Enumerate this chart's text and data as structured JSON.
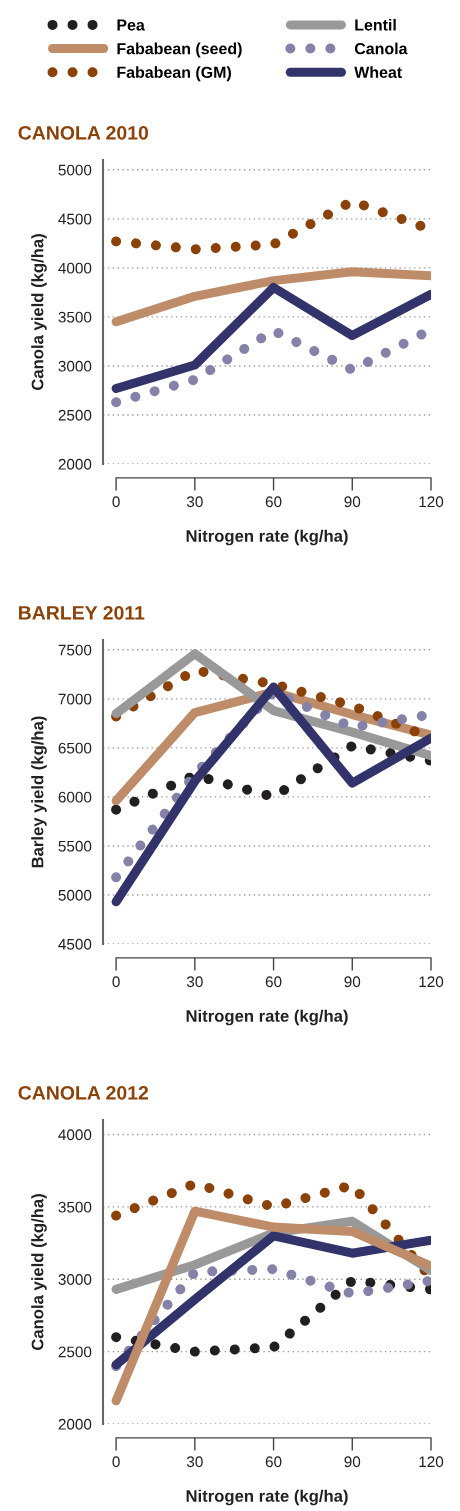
{
  "chart_data": [
    {
      "type": "line",
      "title": "CANOLA 2010",
      "xlabel": "Nitrogen rate (kg/ha)",
      "ylabel": "Canola yield (kg/ha)",
      "x": [
        0,
        30,
        60,
        90,
        120
      ],
      "xlim": [
        -5,
        120
      ],
      "xticks": [
        0,
        30,
        60,
        90,
        120
      ],
      "ylim": [
        2000,
        5100
      ],
      "yticks": [
        2000,
        2500,
        3000,
        3500,
        4000,
        4500,
        5000
      ],
      "grid": "y",
      "legend": "top",
      "series": [
        {
          "name": "Fababean (seed)",
          "color": "#be8c69",
          "line_style": "solid",
          "values": [
            3450,
            3710,
            3870,
            3960,
            3920
          ]
        },
        {
          "name": "Fababean (GM)",
          "color": "#8b4209",
          "line_style": "dotted",
          "values": [
            4270,
            4190,
            4240,
            4680,
            4390
          ]
        },
        {
          "name": "Canola",
          "color": "#8482a8",
          "line_style": "dotted",
          "values": [
            2630,
            2860,
            3360,
            2960,
            3370
          ]
        },
        {
          "name": "Wheat",
          "color": "#33336b",
          "line_style": "solid",
          "values": [
            2770,
            3010,
            3800,
            3310,
            3730
          ]
        }
      ]
    },
    {
      "type": "line",
      "title": "BARLEY 2011",
      "xlabel": "Nitrogen rate (kg/ha)",
      "ylabel": "Barley yield (kg/ha)",
      "x": [
        0,
        30,
        60,
        90,
        120
      ],
      "xlim": [
        -5,
        120
      ],
      "xticks": [
        0,
        30,
        60,
        90,
        120
      ],
      "ylim": [
        4500,
        7600
      ],
      "yticks": [
        4500,
        5000,
        5500,
        6000,
        6500,
        7000,
        7500
      ],
      "grid": "y",
      "legend": "top",
      "series": [
        {
          "name": "Pea",
          "color": "#231f20",
          "line_style": "dotted",
          "values": [
            5870,
            6220,
            6000,
            6520,
            6370
          ]
        },
        {
          "name": "Fababean (seed)",
          "color": "#be8c69",
          "line_style": "solid",
          "values": [
            5960,
            6860,
            7070,
            6840,
            6630
          ]
        },
        {
          "name": "Fababean (GM)",
          "color": "#8b4209",
          "line_style": "dotted",
          "values": [
            6820,
            7290,
            7150,
            6930,
            6600
          ]
        },
        {
          "name": "Lentil",
          "color": "#999999",
          "line_style": "solid",
          "values": [
            6850,
            7460,
            6880,
            6660,
            6420
          ]
        },
        {
          "name": "Canola",
          "color": "#8482a8",
          "line_style": "dotted",
          "values": [
            5180,
            6230,
            7070,
            6710,
            6840
          ]
        },
        {
          "name": "Wheat",
          "color": "#33336b",
          "line_style": "solid",
          "values": [
            4930,
            6160,
            7120,
            6140,
            6600
          ]
        }
      ]
    },
    {
      "type": "line",
      "title": "CANOLA 2012",
      "xlabel": "Nitrogen rate (kg/ha)",
      "ylabel": "Canola yield (kg/ha)",
      "x": [
        0,
        30,
        60,
        90,
        120
      ],
      "xlim": [
        -5,
        120
      ],
      "xticks": [
        0,
        30,
        60,
        90,
        120
      ],
      "ylim": [
        2000,
        4100
      ],
      "yticks": [
        2000,
        2500,
        3000,
        3500,
        4000
      ],
      "grid": "y",
      "legend": "top",
      "series": [
        {
          "name": "Pea",
          "color": "#231f20",
          "line_style": "dotted",
          "values": [
            2600,
            2500,
            2530,
            2990,
            2930
          ]
        },
        {
          "name": "Fababean (GM)",
          "color": "#8b4209",
          "line_style": "dotted",
          "values": [
            3440,
            3660,
            3500,
            3650,
            3010
          ]
        },
        {
          "name": "Canola",
          "color": "#8482a8",
          "line_style": "dotted",
          "values": [
            2400,
            3050,
            3070,
            2900,
            2990
          ]
        },
        {
          "name": "Lentil",
          "color": "#999999",
          "line_style": "solid",
          "values": [
            2930,
            3100,
            3320,
            3400,
            3060
          ]
        },
        {
          "name": "Wheat",
          "color": "#33336b",
          "line_style": "solid",
          "values": [
            2410,
            2860,
            3300,
            3180,
            3270
          ]
        },
        {
          "name": "Fababean (seed)",
          "color": "#be8c69",
          "line_style": "solid",
          "values": [
            2160,
            3470,
            3360,
            3330,
            3090
          ]
        }
      ]
    }
  ]
}
